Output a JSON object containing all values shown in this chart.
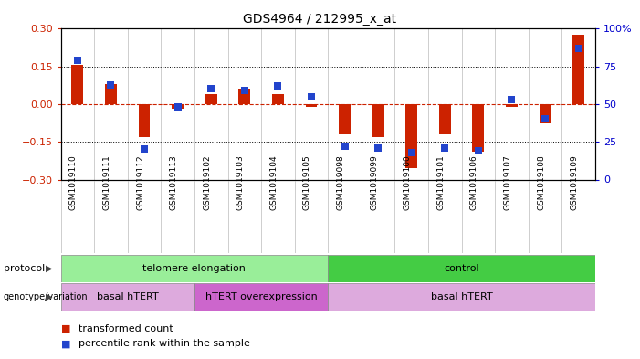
{
  "title": "GDS4964 / 212995_x_at",
  "samples": [
    "GSM1019110",
    "GSM1019111",
    "GSM1019112",
    "GSM1019113",
    "GSM1019102",
    "GSM1019103",
    "GSM1019104",
    "GSM1019105",
    "GSM1019098",
    "GSM1019099",
    "GSM1019100",
    "GSM1019101",
    "GSM1019106",
    "GSM1019107",
    "GSM1019108",
    "GSM1019109"
  ],
  "transformed_count": [
    0.155,
    0.08,
    -0.13,
    -0.02,
    0.04,
    0.06,
    0.04,
    -0.01,
    -0.12,
    -0.13,
    -0.255,
    -0.12,
    -0.19,
    -0.01,
    -0.075,
    0.275
  ],
  "percentile_rank": [
    79,
    63,
    20,
    48,
    60,
    59,
    62,
    55,
    22,
    21,
    18,
    21,
    19,
    53,
    40,
    87
  ],
  "ylim_left": [
    -0.3,
    0.3
  ],
  "ylim_right": [
    0,
    100
  ],
  "yticks_left": [
    -0.3,
    -0.15,
    0.0,
    0.15,
    0.3
  ],
  "yticks_right": [
    0,
    25,
    50,
    75,
    100
  ],
  "ytick_labels_right": [
    "0",
    "25",
    "50",
    "75",
    "100%"
  ],
  "bar_color": "#cc2200",
  "dot_color": "#2244cc",
  "zero_line_color": "#cc2200",
  "dotted_line_color": "#000000",
  "protocol_groups": [
    {
      "label": "telomere elongation",
      "start": 0,
      "end": 7,
      "color": "#99ee99"
    },
    {
      "label": "control",
      "start": 8,
      "end": 15,
      "color": "#44cc44"
    }
  ],
  "genotype_groups": [
    {
      "label": "basal hTERT",
      "start": 0,
      "end": 3,
      "color": "#ddaadd"
    },
    {
      "label": "hTERT overexpression",
      "start": 4,
      "end": 7,
      "color": "#cc66cc"
    },
    {
      "label": "basal hTERT",
      "start": 8,
      "end": 15,
      "color": "#ddaadd"
    }
  ],
  "bg_color": "#ffffff",
  "bar_width": 0.35,
  "dot_size": 40,
  "ylabel_left_color": "#cc2200",
  "ylabel_right_color": "#0000cc"
}
